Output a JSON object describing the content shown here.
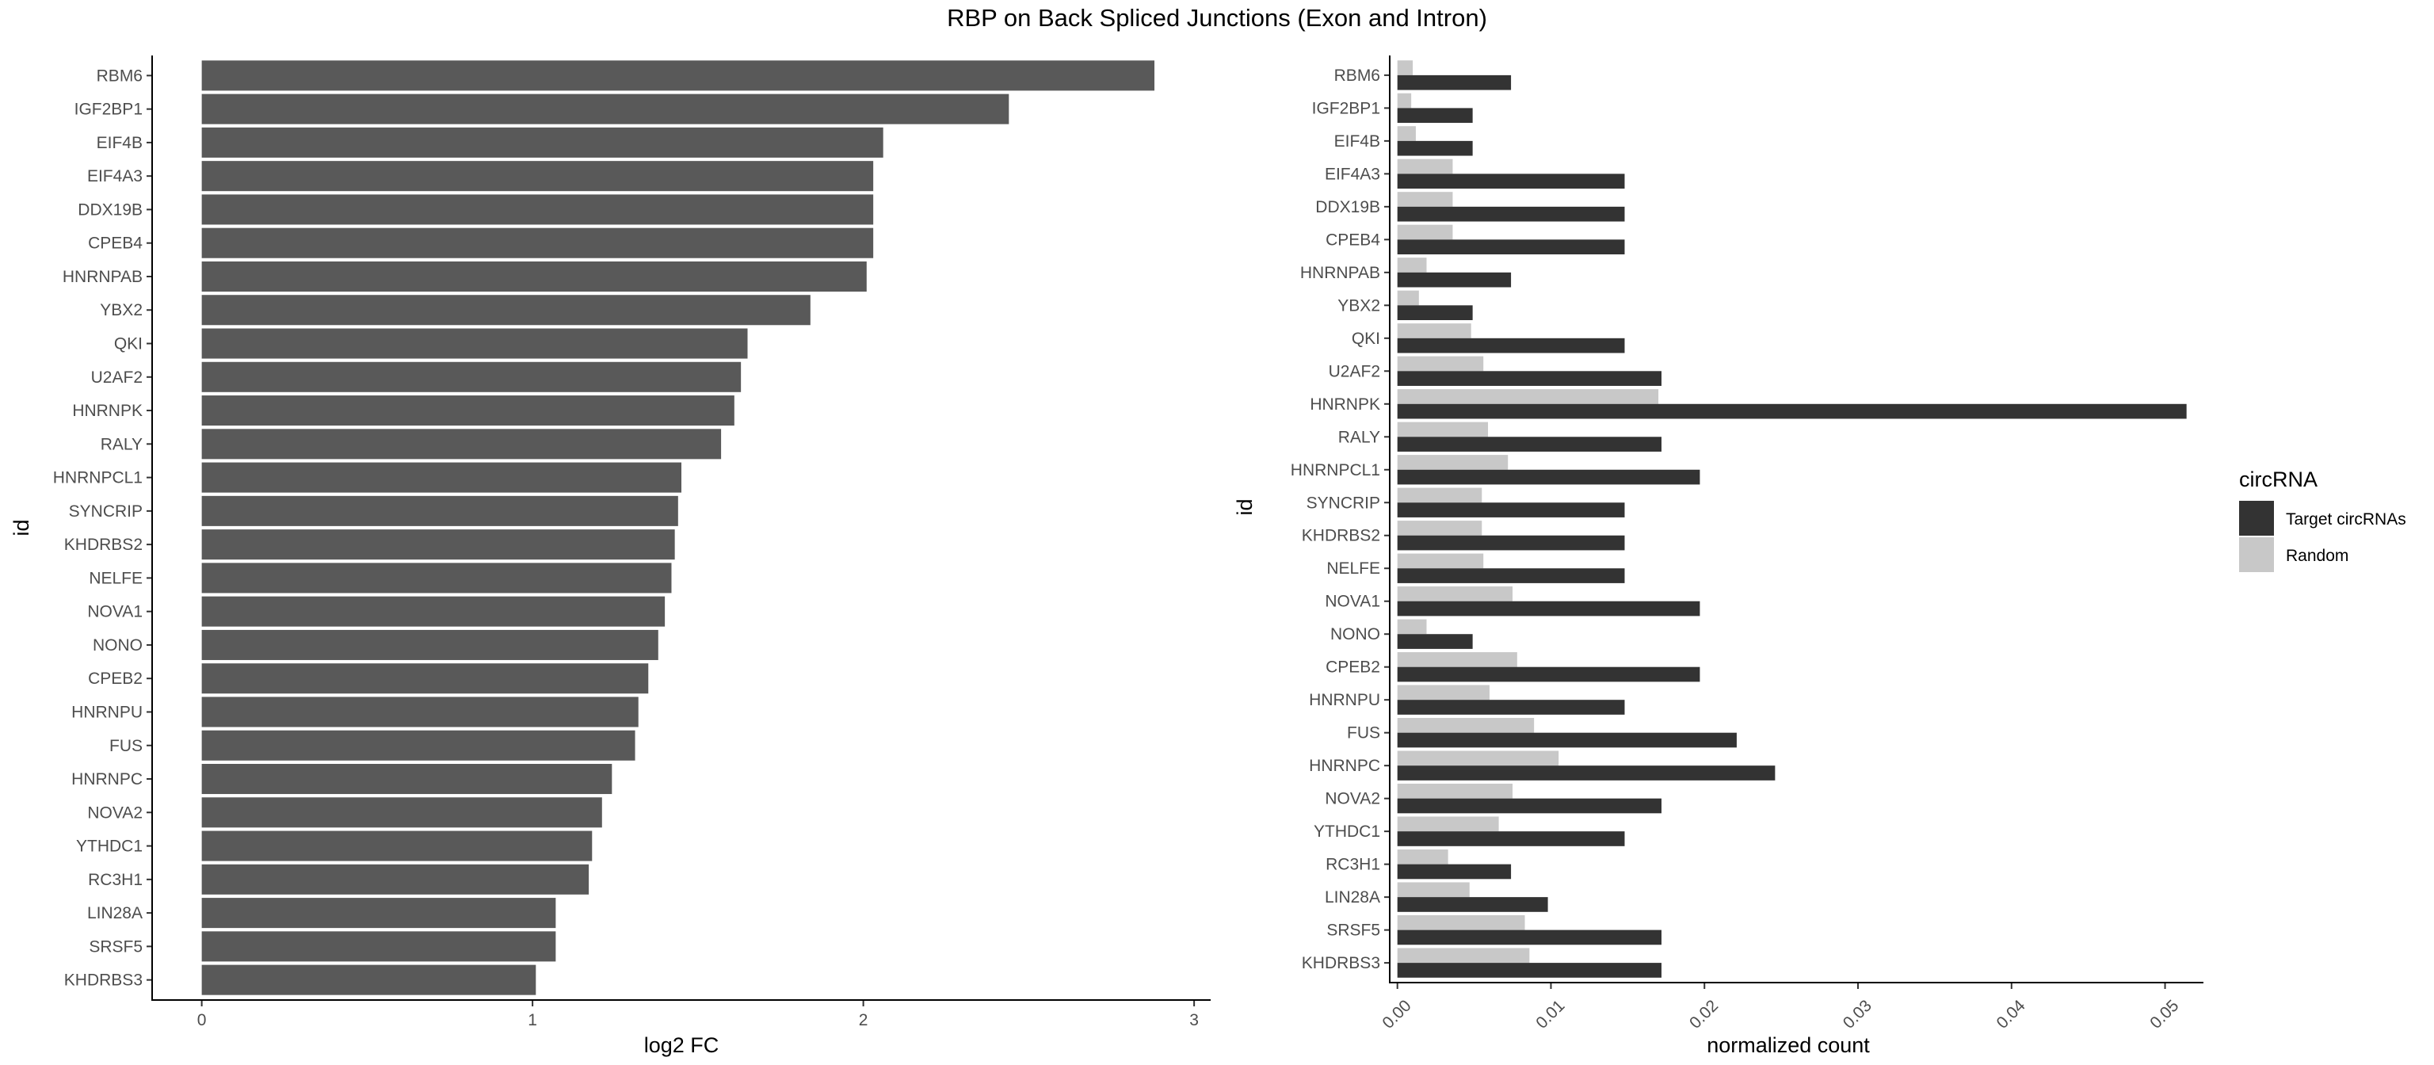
{
  "title": "RBP on Back Spliced Junctions (Exon and Intron)",
  "colors": {
    "bar": "#595959",
    "target": "#333333",
    "random": "#c8c8c8",
    "axis": "#000000",
    "tick_text": "#4d4d4d"
  },
  "chart_data": [
    {
      "type": "bar",
      "orientation": "horizontal",
      "xlabel": "log2 FC",
      "ylabel": "id",
      "xlim": [
        -0.15,
        3.05
      ],
      "xticks": [
        0,
        1,
        2,
        3
      ],
      "grid": false,
      "categories": [
        "RBM6",
        "IGF2BP1",
        "EIF4B",
        "EIF4A3",
        "DDX19B",
        "CPEB4",
        "HNRNPAB",
        "YBX2",
        "QKI",
        "U2AF2",
        "HNRNPK",
        "RALY",
        "HNRNPCL1",
        "SYNCRIP",
        "KHDRBS2",
        "NELFE",
        "NOVA1",
        "NONO",
        "CPEB2",
        "HNRNPU",
        "FUS",
        "HNRNPC",
        "NOVA2",
        "YTHDC1",
        "RC3H1",
        "LIN28A",
        "SRSF5",
        "KHDRBS3"
      ],
      "values": [
        2.88,
        2.44,
        2.06,
        2.03,
        2.03,
        2.03,
        2.01,
        1.84,
        1.65,
        1.63,
        1.61,
        1.57,
        1.45,
        1.44,
        1.43,
        1.42,
        1.4,
        1.38,
        1.35,
        1.32,
        1.31,
        1.24,
        1.21,
        1.18,
        1.17,
        1.07,
        1.07,
        1.01
      ]
    },
    {
      "type": "bar",
      "orientation": "horizontal",
      "grouped": true,
      "xlabel": "normalized count",
      "ylabel": "id",
      "xlim": [
        -0.0005,
        0.0525
      ],
      "xticks": [
        0.0,
        0.01,
        0.02,
        0.03,
        0.04,
        0.05
      ],
      "xtick_labels": [
        "0.00",
        "0.01",
        "0.02",
        "0.03",
        "0.04",
        "0.05"
      ],
      "grid": false,
      "legend": {
        "title": "circRNA",
        "position": "right"
      },
      "categories": [
        "RBM6",
        "IGF2BP1",
        "EIF4B",
        "EIF4A3",
        "DDX19B",
        "CPEB4",
        "HNRNPAB",
        "YBX2",
        "QKI",
        "U2AF2",
        "HNRNPK",
        "RALY",
        "HNRNPCL1",
        "SYNCRIP",
        "KHDRBS2",
        "NELFE",
        "NOVA1",
        "NONO",
        "CPEB2",
        "HNRNPU",
        "FUS",
        "HNRNPC",
        "NOVA2",
        "YTHDC1",
        "RC3H1",
        "LIN28A",
        "SRSF5",
        "KHDRBS3"
      ],
      "series": [
        {
          "name": "Target circRNAs",
          "color": "#333333",
          "values": [
            0.0074,
            0.0049,
            0.0049,
            0.0148,
            0.0148,
            0.0148,
            0.0074,
            0.0049,
            0.0148,
            0.0172,
            0.0514,
            0.0172,
            0.0197,
            0.0148,
            0.0148,
            0.0148,
            0.0197,
            0.0049,
            0.0197,
            0.0148,
            0.0221,
            0.0246,
            0.0172,
            0.0148,
            0.0074,
            0.0098,
            0.0172,
            0.0172
          ]
        },
        {
          "name": "Random",
          "color": "#c8c8c8",
          "values": [
            0.001,
            0.0009,
            0.0012,
            0.0036,
            0.0036,
            0.0036,
            0.0019,
            0.0014,
            0.0048,
            0.0056,
            0.017,
            0.0059,
            0.0072,
            0.0055,
            0.0055,
            0.0056,
            0.0075,
            0.0019,
            0.0078,
            0.006,
            0.0089,
            0.0105,
            0.0075,
            0.0066,
            0.0033,
            0.0047,
            0.0083,
            0.0086
          ]
        }
      ]
    }
  ]
}
